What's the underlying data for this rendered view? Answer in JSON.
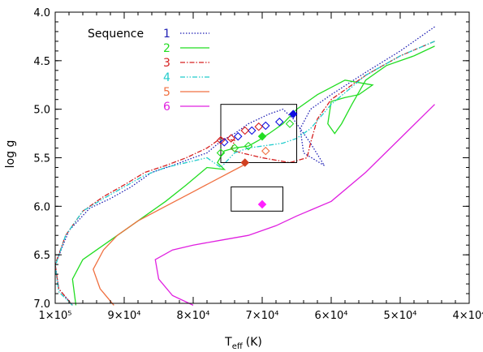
{
  "chart_data": {
    "type": "line",
    "title": "",
    "xlabel": "T",
    "xlabel_sub": "eff",
    "xlabel_unit": "(K)",
    "ylabel": "log g",
    "xlim": [
      100000,
      40000
    ],
    "ylim": [
      4.0,
      7.0
    ],
    "x_inverted": true,
    "y_inverted": true,
    "x_ticks": [
      100000,
      90000,
      80000,
      70000,
      60000,
      50000,
      40000
    ],
    "x_tick_labels": [
      "1×10⁵",
      "9×10⁴",
      "8×10⁴",
      "7×10⁴",
      "6×10⁴",
      "5×10⁴",
      "4×10⁴"
    ],
    "y_ticks": [
      4.0,
      4.5,
      5.0,
      5.5,
      6.0,
      6.5,
      7.0
    ],
    "y_tick_labels": [
      "4.0",
      "4.5",
      "5.0",
      "5.5",
      "6.0",
      "6.5",
      "7.0"
    ],
    "grid": false,
    "legend": {
      "title": "Sequence",
      "position": "top-left"
    },
    "series": [
      {
        "name": "1",
        "color": "#1f1fb4",
        "dash": "dotted",
        "points": [
          [
            45000,
            4.15
          ],
          [
            50000,
            4.4
          ],
          [
            55000,
            4.62
          ],
          [
            60000,
            4.85
          ],
          [
            63000,
            5.0
          ],
          [
            64500,
            5.2
          ],
          [
            64000,
            5.45
          ],
          [
            61000,
            5.58
          ],
          [
            63000,
            5.35
          ],
          [
            65500,
            5.1
          ],
          [
            67000,
            5.0
          ],
          [
            69000,
            5.05
          ],
          [
            72000,
            5.15
          ],
          [
            74000,
            5.25
          ],
          [
            76000,
            5.33
          ],
          [
            78000,
            5.45
          ],
          [
            80000,
            5.5
          ],
          [
            83000,
            5.58
          ],
          [
            86000,
            5.65
          ],
          [
            89000,
            5.8
          ],
          [
            92000,
            5.92
          ],
          [
            95000,
            6.02
          ],
          [
            98000,
            6.25
          ],
          [
            100000,
            6.6
          ],
          [
            99500,
            6.85
          ],
          [
            97500,
            7.02
          ]
        ]
      },
      {
        "name": "2",
        "color": "#22dd22",
        "dash": "solid",
        "points": [
          [
            45000,
            4.35
          ],
          [
            48000,
            4.45
          ],
          [
            52000,
            4.55
          ],
          [
            55000,
            4.7
          ],
          [
            57000,
            4.95
          ],
          [
            58500,
            5.15
          ],
          [
            59500,
            5.25
          ],
          [
            60500,
            5.15
          ],
          [
            60000,
            4.92
          ],
          [
            58000,
            4.88
          ],
          [
            56000,
            4.85
          ],
          [
            54000,
            4.75
          ],
          [
            58000,
            4.7
          ],
          [
            62000,
            4.85
          ],
          [
            65000,
            5.0
          ],
          [
            67000,
            5.15
          ],
          [
            69000,
            5.25
          ],
          [
            70500,
            5.32
          ],
          [
            72000,
            5.38
          ],
          [
            74000,
            5.4
          ],
          [
            75500,
            5.43
          ],
          [
            76500,
            5.55
          ],
          [
            75500,
            5.62
          ],
          [
            78000,
            5.6
          ],
          [
            81000,
            5.78
          ],
          [
            84000,
            5.95
          ],
          [
            87000,
            6.1
          ],
          [
            90000,
            6.25
          ],
          [
            93000,
            6.4
          ],
          [
            96000,
            6.55
          ],
          [
            97500,
            6.75
          ],
          [
            97000,
            7.02
          ]
        ]
      },
      {
        "name": "3",
        "color": "#d62020",
        "dash": "dashdot",
        "points": [
          [
            45000,
            4.3
          ],
          [
            50000,
            4.45
          ],
          [
            55000,
            4.65
          ],
          [
            60000,
            4.9
          ],
          [
            62000,
            5.1
          ],
          [
            63000,
            5.35
          ],
          [
            63500,
            5.5
          ],
          [
            66000,
            5.55
          ],
          [
            70000,
            5.5
          ],
          [
            73000,
            5.45
          ],
          [
            74500,
            5.42
          ],
          [
            74000,
            5.32
          ],
          [
            76000,
            5.3
          ],
          [
            78000,
            5.4
          ],
          [
            81000,
            5.5
          ],
          [
            84000,
            5.58
          ],
          [
            87000,
            5.65
          ],
          [
            90000,
            5.78
          ],
          [
            93000,
            5.9
          ],
          [
            96000,
            6.05
          ],
          [
            98500,
            6.3
          ],
          [
            100000,
            6.6
          ],
          [
            99500,
            6.85
          ],
          [
            97500,
            7.02
          ]
        ]
      },
      {
        "name": "4",
        "color": "#22cccc",
        "dash": "dashdotdot",
        "points": [
          [
            45000,
            4.3
          ],
          [
            50000,
            4.45
          ],
          [
            55000,
            4.65
          ],
          [
            60000,
            4.95
          ],
          [
            63000,
            5.2
          ],
          [
            65000,
            5.3
          ],
          [
            67000,
            5.35
          ],
          [
            70000,
            5.38
          ],
          [
            72000,
            5.4
          ],
          [
            74000,
            5.45
          ],
          [
            76000,
            5.6
          ],
          [
            78000,
            5.5
          ],
          [
            81000,
            5.55
          ],
          [
            84000,
            5.6
          ],
          [
            87000,
            5.68
          ],
          [
            90000,
            5.8
          ],
          [
            93000,
            5.92
          ],
          [
            96000,
            6.05
          ],
          [
            98500,
            6.3
          ],
          [
            100000,
            6.62
          ],
          [
            99500,
            6.88
          ],
          [
            97500,
            7.02
          ]
        ]
      },
      {
        "name": "5",
        "color": "#f07040",
        "dash": "solid",
        "points": [
          [
            72000,
            5.55
          ],
          [
            76000,
            5.7
          ],
          [
            80000,
            5.85
          ],
          [
            84000,
            6.0
          ],
          [
            88000,
            6.15
          ],
          [
            91000,
            6.3
          ],
          [
            93000,
            6.45
          ],
          [
            94500,
            6.65
          ],
          [
            93500,
            6.85
          ],
          [
            91500,
            7.02
          ]
        ]
      },
      {
        "name": "6",
        "color": "#e020e0",
        "dash": "solid",
        "points": [
          [
            45000,
            4.95
          ],
          [
            50000,
            5.3
          ],
          [
            55000,
            5.65
          ],
          [
            60000,
            5.95
          ],
          [
            65000,
            6.1
          ],
          [
            68000,
            6.2
          ],
          [
            72000,
            6.3
          ],
          [
            76000,
            6.35
          ],
          [
            80000,
            6.4
          ],
          [
            83000,
            6.45
          ],
          [
            85500,
            6.55
          ],
          [
            85000,
            6.75
          ],
          [
            83000,
            6.92
          ],
          [
            80000,
            7.02
          ]
        ]
      }
    ],
    "markers": [
      {
        "x": 65500,
        "y": 5.05,
        "color": "#1010e0",
        "shape": "diamond",
        "filled": true
      },
      {
        "x": 67500,
        "y": 5.13,
        "color": "#1010e0",
        "shape": "diamond",
        "filled": false
      },
      {
        "x": 69500,
        "y": 5.17,
        "color": "#1010e0",
        "shape": "diamond",
        "filled": false
      },
      {
        "x": 71500,
        "y": 5.22,
        "color": "#1010e0",
        "shape": "diamond",
        "filled": false
      },
      {
        "x": 73500,
        "y": 5.28,
        "color": "#1010e0",
        "shape": "diamond",
        "filled": false
      },
      {
        "x": 75500,
        "y": 5.34,
        "color": "#1010e0",
        "shape": "diamond",
        "filled": false
      },
      {
        "x": 70500,
        "y": 5.18,
        "color": "#d62020",
        "shape": "diamond",
        "filled": false
      },
      {
        "x": 72500,
        "y": 5.22,
        "color": "#d62020",
        "shape": "diamond",
        "filled": false
      },
      {
        "x": 74500,
        "y": 5.3,
        "color": "#d62020",
        "shape": "diamond",
        "filled": false
      },
      {
        "x": 76000,
        "y": 5.32,
        "color": "#d62020",
        "shape": "diamond",
        "filled": false
      },
      {
        "x": 66000,
        "y": 5.15,
        "color": "#22dd22",
        "shape": "diamond",
        "filled": false
      },
      {
        "x": 70000,
        "y": 5.28,
        "color": "#22dd22",
        "shape": "diamond",
        "filled": true
      },
      {
        "x": 72000,
        "y": 5.38,
        "color": "#22dd22",
        "shape": "diamond",
        "filled": false
      },
      {
        "x": 74000,
        "y": 5.4,
        "color": "#22dd22",
        "shape": "diamond",
        "filled": false
      },
      {
        "x": 76000,
        "y": 5.45,
        "color": "#22dd22",
        "shape": "diamond",
        "filled": false
      },
      {
        "x": 69500,
        "y": 5.43,
        "color": "#f07040",
        "shape": "diamond",
        "filled": false
      },
      {
        "x": 72500,
        "y": 5.55,
        "color": "#d04020",
        "shape": "diamond",
        "filled": true
      },
      {
        "x": 70000,
        "y": 5.98,
        "color": "#ff20ff",
        "shape": "diamond",
        "filled": true
      }
    ],
    "boxes": [
      {
        "x0": 76000,
        "x1": 65000,
        "y0": 4.95,
        "y1": 5.55
      },
      {
        "x0": 74500,
        "x1": 67000,
        "y0": 5.8,
        "y1": 6.05
      }
    ]
  }
}
